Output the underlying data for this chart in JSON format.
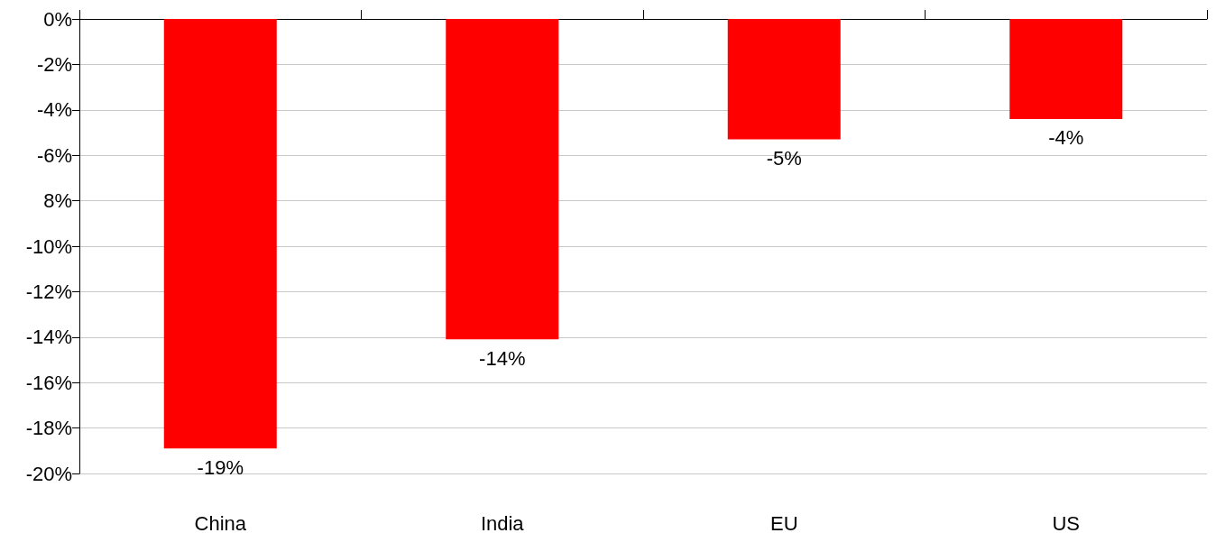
{
  "chart_data": {
    "type": "bar",
    "categories": [
      "China",
      "India",
      "EU",
      "US"
    ],
    "values": [
      -18.9,
      -14.1,
      -5.3,
      -4.4
    ],
    "value_labels": [
      "-19%",
      "-14%",
      "-5%",
      "-4%"
    ],
    "color": "#ff0000",
    "ylim": [
      -20,
      0
    ],
    "yticks": [
      {
        "value": 0,
        "label": "0%"
      },
      {
        "value": -2,
        "label": "-2%"
      },
      {
        "value": -4,
        "label": "-4%"
      },
      {
        "value": -6,
        "label": "-6%"
      },
      {
        "value": -8,
        "label": "8%"
      },
      {
        "value": -10,
        "label": "-10%"
      },
      {
        "value": -12,
        "label": "-12%"
      },
      {
        "value": -14,
        "label": "-14%"
      },
      {
        "value": -16,
        "label": "-16%"
      },
      {
        "value": -18,
        "label": "-18%"
      },
      {
        "value": -20,
        "label": "-20%"
      }
    ],
    "grid": "y"
  }
}
